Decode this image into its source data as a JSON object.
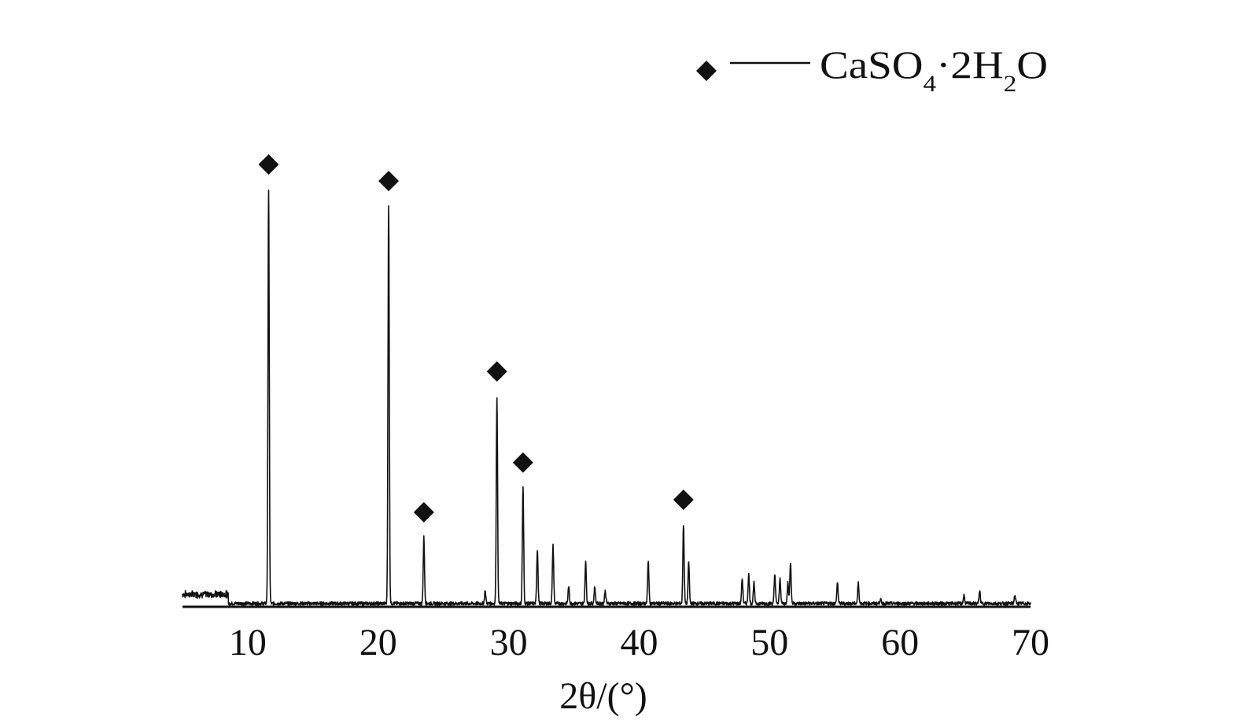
{
  "chart_data": {
    "type": "line",
    "title": "",
    "xlabel": "2θ/(°)",
    "ylabel": "",
    "xlim": [
      5,
      70
    ],
    "ylim": [
      0,
      100
    ],
    "x_ticks": [
      10,
      20,
      30,
      40,
      50,
      60,
      70
    ],
    "grid": false,
    "legend_position": "top-right",
    "colors": {
      "line": "#111111",
      "marker": "#111111",
      "background": "#ffffff"
    },
    "series": [
      {
        "name": "",
        "peaks": [
          {
            "x": 11.6,
            "y": 100
          },
          {
            "x": 20.8,
            "y": 96
          },
          {
            "x": 23.5,
            "y": 16
          },
          {
            "x": 28.2,
            "y": 3
          },
          {
            "x": 29.1,
            "y": 50
          },
          {
            "x": 31.1,
            "y": 28
          },
          {
            "x": 32.2,
            "y": 13
          },
          {
            "x": 33.4,
            "y": 14
          },
          {
            "x": 34.6,
            "y": 4
          },
          {
            "x": 35.9,
            "y": 10
          },
          {
            "x": 36.6,
            "y": 4
          },
          {
            "x": 37.4,
            "y": 3
          },
          {
            "x": 40.7,
            "y": 10
          },
          {
            "x": 43.4,
            "y": 19
          },
          {
            "x": 43.8,
            "y": 10
          },
          {
            "x": 47.9,
            "y": 6
          },
          {
            "x": 48.4,
            "y": 7
          },
          {
            "x": 48.8,
            "y": 5
          },
          {
            "x": 50.4,
            "y": 7
          },
          {
            "x": 50.8,
            "y": 6
          },
          {
            "x": 51.4,
            "y": 5
          },
          {
            "x": 51.6,
            "y": 10
          },
          {
            "x": 55.2,
            "y": 5
          },
          {
            "x": 56.8,
            "y": 5
          },
          {
            "x": 58.5,
            "y": 1
          },
          {
            "x": 64.9,
            "y": 2
          },
          {
            "x": 66.1,
            "y": 3
          },
          {
            "x": 68.8,
            "y": 2
          }
        ]
      }
    ],
    "marked_peaks": [
      11.6,
      20.8,
      23.5,
      29.1,
      31.1,
      43.4
    ],
    "legend": {
      "marker": "diamond",
      "label": "CaSO4·2H2O"
    }
  }
}
